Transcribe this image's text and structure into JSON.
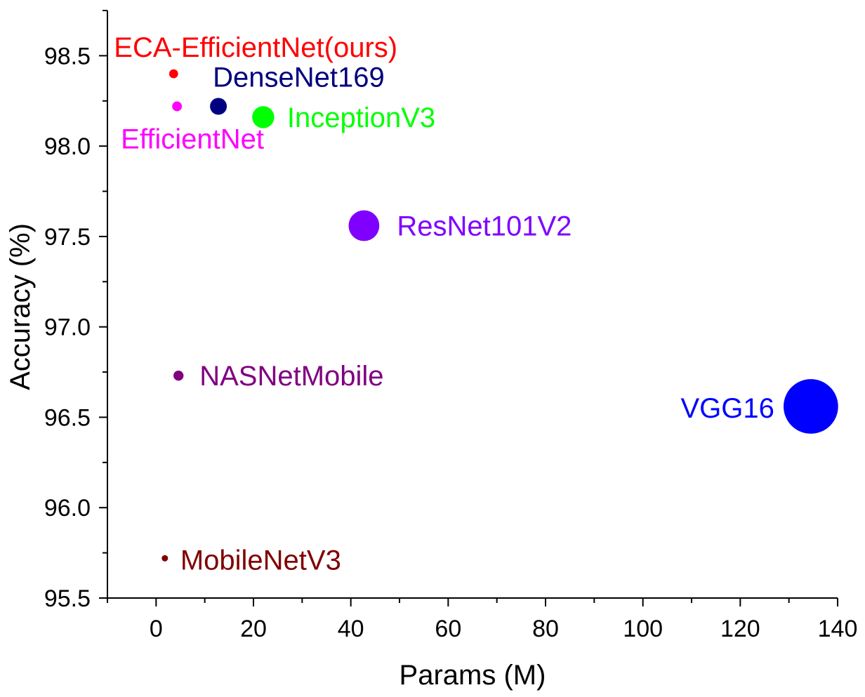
{
  "chart_data": {
    "type": "scatter",
    "title": "",
    "xlabel": "Params (M)",
    "ylabel": "Accuracy (%)",
    "xlim": [
      -10,
      140
    ],
    "ylim": [
      95.5,
      98.75
    ],
    "x_ticks": [
      "0",
      "20",
      "40",
      "60",
      "80",
      "100",
      "120",
      "140"
    ],
    "y_ticks": [
      "95.5",
      "96.0",
      "96.5",
      "97.0",
      "97.5",
      "98.0",
      "98.5"
    ],
    "grid": false,
    "legend": "none",
    "marker_size_encodes": "Params (M)",
    "points": [
      {
        "name": "ECA-EfficientNet(ours)",
        "x": 3.6,
        "y": 98.4,
        "color": "#ff0000"
      },
      {
        "name": "DenseNet169",
        "x": 12.8,
        "y": 98.22,
        "color": "#000080"
      },
      {
        "name": "EfficientNet",
        "x": 4.3,
        "y": 98.22,
        "color": "#ff00ff"
      },
      {
        "name": "InceptionV3",
        "x": 22.0,
        "y": 98.16,
        "color": "#00ff00"
      },
      {
        "name": "ResNet101V2",
        "x": 42.7,
        "y": 97.56,
        "color": "#8000ff"
      },
      {
        "name": "NASNetMobile",
        "x": 4.6,
        "y": 96.73,
        "color": "#800080"
      },
      {
        "name": "VGG16",
        "x": 134.5,
        "y": 96.56,
        "color": "#0000ff"
      },
      {
        "name": "MobileNetV3",
        "x": 1.8,
        "y": 95.72,
        "color": "#800000"
      }
    ]
  }
}
